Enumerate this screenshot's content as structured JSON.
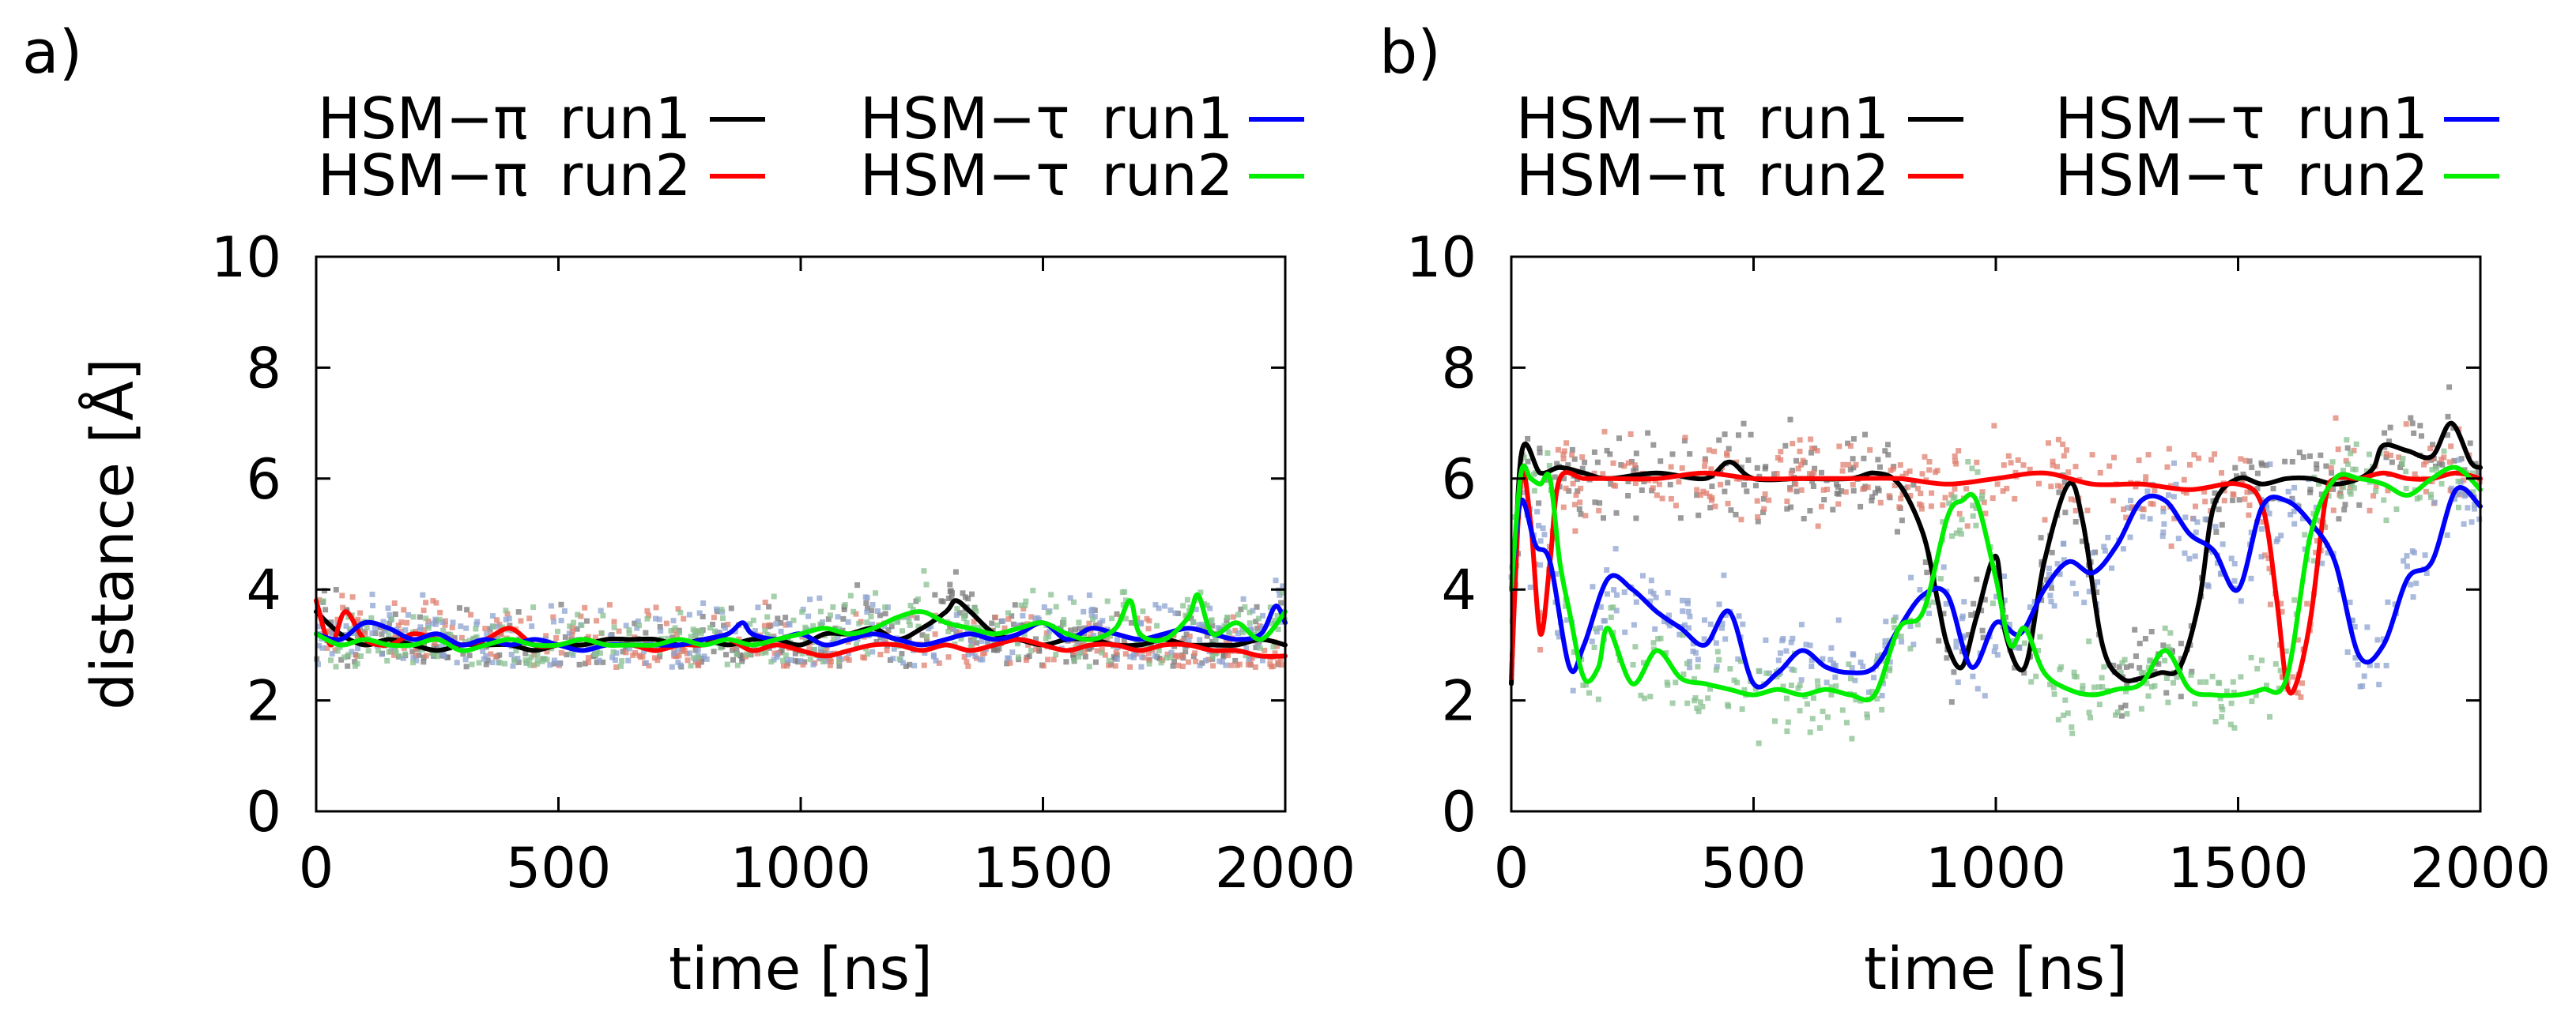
{
  "chart_data": [
    {
      "type": "line",
      "panel": "a)",
      "xlabel": "time [ns]",
      "ylabel": "distance [Å]",
      "xlim": [
        0,
        2000
      ],
      "ylim": [
        0,
        10
      ],
      "xticks": [
        "0",
        "500",
        "1000",
        "1500",
        "2000"
      ],
      "yticks": [
        "0",
        "2",
        "4",
        "6",
        "8",
        "10"
      ],
      "grid": false,
      "legend_position": "top",
      "series": [
        {
          "name": "HSM−π run1",
          "label": "HSM−π",
          "run": "run1",
          "color": "#000000",
          "scatter_color": "#7a7a7a",
          "x": [
            0,
            50,
            100,
            150,
            200,
            250,
            300,
            350,
            400,
            450,
            500,
            550,
            600,
            650,
            700,
            750,
            800,
            850,
            900,
            950,
            1000,
            1050,
            1100,
            1150,
            1200,
            1250,
            1300,
            1320,
            1350,
            1400,
            1450,
            1500,
            1550,
            1600,
            1650,
            1700,
            1750,
            1800,
            1850,
            1900,
            1950,
            2000
          ],
          "y": [
            3.6,
            3.2,
            3.0,
            3.1,
            3.0,
            2.9,
            3.0,
            3.0,
            3.0,
            2.9,
            3.0,
            3.0,
            3.1,
            3.1,
            3.1,
            3.0,
            3.1,
            3.0,
            3.1,
            3.1,
            3.0,
            3.2,
            3.2,
            3.3,
            3.1,
            3.3,
            3.6,
            3.8,
            3.6,
            3.2,
            3.1,
            3.0,
            3.1,
            3.1,
            3.0,
            3.0,
            3.1,
            3.0,
            3.0,
            3.0,
            3.1,
            3.0
          ]
        },
        {
          "name": "HSM−π run2",
          "label": "HSM−π",
          "run": "run2",
          "color": "#ff0000",
          "scatter_color": "#e08070",
          "x": [
            0,
            30,
            60,
            100,
            150,
            200,
            250,
            300,
            350,
            400,
            450,
            500,
            550,
            600,
            650,
            700,
            750,
            800,
            850,
            900,
            950,
            1000,
            1050,
            1100,
            1150,
            1200,
            1250,
            1300,
            1350,
            1400,
            1450,
            1500,
            1550,
            1600,
            1650,
            1700,
            1750,
            1800,
            1850,
            1900,
            1950,
            2000
          ],
          "y": [
            3.8,
            3.0,
            3.6,
            3.1,
            3.0,
            3.2,
            3.1,
            3.0,
            3.1,
            3.3,
            3.0,
            3.0,
            3.1,
            3.0,
            3.0,
            2.9,
            3.0,
            3.0,
            3.1,
            2.9,
            3.0,
            2.9,
            2.8,
            2.9,
            3.0,
            3.0,
            2.9,
            3.0,
            2.9,
            3.0,
            3.1,
            3.0,
            2.9,
            3.0,
            3.0,
            2.9,
            3.0,
            3.0,
            2.9,
            2.9,
            2.8,
            2.8
          ]
        },
        {
          "name": "HSM−τ run1",
          "label": "HSM−τ",
          "run": "run1",
          "color": "#0000ff",
          "scatter_color": "#8ea3d0",
          "x": [
            0,
            50,
            100,
            150,
            200,
            250,
            300,
            350,
            400,
            450,
            500,
            550,
            600,
            650,
            700,
            750,
            800,
            850,
            880,
            900,
            950,
            1000,
            1050,
            1100,
            1150,
            1200,
            1250,
            1300,
            1350,
            1400,
            1450,
            1500,
            1550,
            1600,
            1650,
            1700,
            1750,
            1800,
            1850,
            1900,
            1950,
            1980,
            2000
          ],
          "y": [
            3.2,
            3.1,
            3.4,
            3.3,
            3.1,
            3.2,
            3.0,
            3.1,
            3.0,
            3.1,
            3.0,
            2.9,
            3.0,
            3.0,
            3.0,
            3.0,
            3.1,
            3.2,
            3.4,
            3.2,
            3.1,
            3.2,
            3.0,
            3.1,
            3.2,
            3.1,
            3.0,
            3.1,
            3.2,
            3.1,
            3.2,
            3.4,
            3.1,
            3.3,
            3.2,
            3.1,
            3.2,
            3.3,
            3.2,
            3.1,
            3.2,
            3.7,
            3.4
          ]
        },
        {
          "name": "HSM−τ run2",
          "label": "HSM−τ",
          "run": "run2",
          "color": "#00ee00",
          "scatter_color": "#88c090",
          "x": [
            0,
            50,
            100,
            150,
            200,
            250,
            300,
            350,
            400,
            450,
            500,
            550,
            600,
            650,
            700,
            750,
            800,
            850,
            900,
            950,
            1000,
            1050,
            1100,
            1150,
            1200,
            1250,
            1300,
            1350,
            1400,
            1450,
            1500,
            1550,
            1600,
            1650,
            1680,
            1700,
            1750,
            1800,
            1820,
            1850,
            1900,
            1950,
            2000
          ],
          "y": [
            3.2,
            3.0,
            3.1,
            3.0,
            3.0,
            3.1,
            2.9,
            3.0,
            3.1,
            3.0,
            3.0,
            3.1,
            3.0,
            3.0,
            3.0,
            3.1,
            3.0,
            3.1,
            3.0,
            3.1,
            3.2,
            3.3,
            3.2,
            3.3,
            3.5,
            3.6,
            3.4,
            3.3,
            3.2,
            3.3,
            3.4,
            3.2,
            3.1,
            3.3,
            3.8,
            3.2,
            3.1,
            3.5,
            3.9,
            3.2,
            3.4,
            3.1,
            3.6
          ]
        }
      ]
    },
    {
      "type": "line",
      "panel": "b)",
      "xlabel": "time [ns]",
      "ylabel": "",
      "xlim": [
        0,
        2000
      ],
      "ylim": [
        0,
        10
      ],
      "xticks": [
        "0",
        "500",
        "1000",
        "1500",
        "2000"
      ],
      "yticks": [
        "0",
        "2",
        "4",
        "6",
        "8",
        "10"
      ],
      "grid": false,
      "legend_position": "top",
      "series": [
        {
          "name": "HSM−π run1",
          "label": "HSM−π",
          "run": "run1",
          "color": "#000000",
          "scatter_color": "#7a7a7a",
          "x": [
            0,
            20,
            60,
            100,
            150,
            200,
            300,
            400,
            450,
            500,
            600,
            700,
            750,
            800,
            850,
            880,
            900,
            930,
            960,
            1000,
            1020,
            1060,
            1100,
            1150,
            1180,
            1220,
            1260,
            1300,
            1340,
            1380,
            1420,
            1450,
            1500,
            1550,
            1600,
            1650,
            1700,
            1750,
            1780,
            1800,
            1850,
            1900,
            1940,
            1980,
            2000
          ],
          "y": [
            2.3,
            6.4,
            6.1,
            6.2,
            6.1,
            6.0,
            6.1,
            6.0,
            6.3,
            6.0,
            6.0,
            6.0,
            6.1,
            5.9,
            5.0,
            3.8,
            3.0,
            2.6,
            3.5,
            4.6,
            3.2,
            2.6,
            4.5,
            5.9,
            5.2,
            3.0,
            2.4,
            2.4,
            2.5,
            2.6,
            3.8,
            5.5,
            6.0,
            5.9,
            6.0,
            6.0,
            5.9,
            6.0,
            6.2,
            6.6,
            6.5,
            6.4,
            7.0,
            6.3,
            6.2
          ]
        },
        {
          "name": "HSM−π run2",
          "label": "HSM−π",
          "run": "run2",
          "color": "#ff0000",
          "scatter_color": "#e08070",
          "x": [
            0,
            20,
            40,
            60,
            80,
            100,
            150,
            200,
            300,
            400,
            500,
            600,
            700,
            800,
            900,
            1000,
            1100,
            1200,
            1300,
            1400,
            1500,
            1550,
            1580,
            1600,
            1620,
            1650,
            1680,
            1700,
            1750,
            1800,
            1850,
            1900,
            1950,
            2000
          ],
          "y": [
            2.4,
            6.0,
            5.2,
            3.2,
            4.5,
            6.0,
            6.0,
            6.0,
            6.0,
            6.1,
            6.0,
            6.0,
            6.0,
            6.0,
            5.9,
            6.0,
            6.1,
            5.9,
            5.9,
            5.8,
            5.9,
            5.5,
            3.8,
            2.3,
            2.3,
            3.5,
            5.6,
            6.0,
            6.0,
            6.1,
            6.0,
            6.0,
            6.1,
            6.0
          ]
        },
        {
          "name": "HSM−τ run1",
          "label": "HSM−τ",
          "run": "run1",
          "color": "#0000ff",
          "scatter_color": "#8ea3d0",
          "x": [
            0,
            20,
            50,
            80,
            120,
            150,
            200,
            250,
            300,
            350,
            400,
            450,
            500,
            550,
            600,
            650,
            700,
            750,
            800,
            850,
            900,
            950,
            1000,
            1050,
            1100,
            1150,
            1200,
            1250,
            1300,
            1350,
            1400,
            1450,
            1500,
            1550,
            1600,
            1650,
            1700,
            1750,
            1800,
            1850,
            1900,
            1950,
            2000
          ],
          "y": [
            4.0,
            5.6,
            4.8,
            4.5,
            2.6,
            3.0,
            4.2,
            4.0,
            3.6,
            3.3,
            3.0,
            3.6,
            2.3,
            2.5,
            2.9,
            2.6,
            2.5,
            2.6,
            3.3,
            3.9,
            3.9,
            2.6,
            3.4,
            3.2,
            4.0,
            4.5,
            4.3,
            4.8,
            5.6,
            5.6,
            5.0,
            4.7,
            4.0,
            5.5,
            5.6,
            5.2,
            4.5,
            2.8,
            3.0,
            4.2,
            4.5,
            5.8,
            5.5
          ]
        },
        {
          "name": "HSM−τ run2",
          "label": "HSM−τ",
          "run": "run2",
          "color": "#00ee00",
          "scatter_color": "#88c090",
          "x": [
            0,
            20,
            40,
            60,
            80,
            100,
            120,
            150,
            180,
            200,
            250,
            300,
            350,
            400,
            450,
            500,
            550,
            600,
            650,
            700,
            750,
            800,
            850,
            900,
            930,
            960,
            1000,
            1030,
            1060,
            1100,
            1150,
            1200,
            1250,
            1300,
            1350,
            1400,
            1450,
            1500,
            1550,
            1600,
            1650,
            1700,
            1750,
            1800,
            1850,
            1900,
            1950,
            2000
          ],
          "y": [
            4.0,
            6.1,
            6.0,
            5.9,
            6.0,
            4.5,
            3.6,
            2.4,
            2.6,
            3.3,
            2.3,
            2.9,
            2.4,
            2.3,
            2.2,
            2.1,
            2.2,
            2.1,
            2.2,
            2.1,
            2.1,
            3.3,
            3.6,
            5.3,
            5.6,
            5.6,
            4.2,
            3.0,
            3.3,
            2.5,
            2.2,
            2.1,
            2.2,
            2.3,
            2.9,
            2.2,
            2.1,
            2.1,
            2.2,
            2.4,
            5.0,
            6.0,
            6.0,
            5.9,
            5.7,
            6.0,
            6.2,
            5.8
          ]
        }
      ]
    }
  ]
}
